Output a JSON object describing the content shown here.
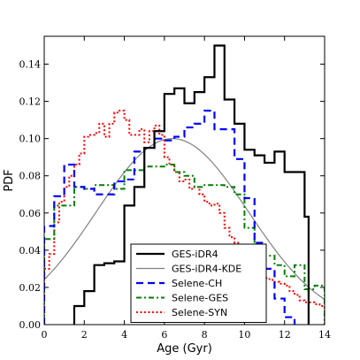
{
  "chart_data": {
    "type": "line",
    "xlabel": "Age (Gyr)",
    "ylabel": "PDF",
    "xlim": [
      0,
      14
    ],
    "ylim": [
      0,
      0.155
    ],
    "x_ticks": [
      0,
      2,
      4,
      6,
      8,
      10,
      12,
      14
    ],
    "y_ticks": [
      0.0,
      0.02,
      0.04,
      0.06,
      0.08,
      0.1,
      0.12,
      0.14
    ],
    "x_tick_labels": [
      "0",
      "2",
      "4",
      "6",
      "8",
      "10",
      "12",
      "14"
    ],
    "y_tick_labels": [
      "0.00",
      "0.02",
      "0.04",
      "0.06",
      "0.08",
      "0.10",
      "0.12",
      "0.14"
    ],
    "legend_position": "bottom-center",
    "grid": false,
    "series": [
      {
        "name": "GES-iDR4",
        "style": "step",
        "color": "#000000",
        "dash": "solid",
        "width": 2.2,
        "edges": [
          1.5,
          2.0,
          2.5,
          3.0,
          3.5,
          4.0,
          4.5,
          5.0,
          5.5,
          6.0,
          6.5,
          7.0,
          7.5,
          8.0,
          8.5,
          9.0,
          9.5,
          10.0,
          10.5,
          11.0,
          11.5,
          12.0,
          12.5,
          13.0,
          13.2
        ],
        "values": [
          0.01,
          0.018,
          0.032,
          0.033,
          0.034,
          0.064,
          0.074,
          0.095,
          0.104,
          0.124,
          0.127,
          0.119,
          0.125,
          0.133,
          0.15,
          0.121,
          0.108,
          0.094,
          0.091,
          0.087,
          0.093,
          0.082,
          0.082,
          0.058
        ]
      },
      {
        "name": "GES-iDR4-KDE",
        "style": "curve",
        "color": "#808080",
        "dash": "solid",
        "width": 1.2,
        "mean": 6.4,
        "sd": 3.8,
        "peak": 0.1
      },
      {
        "name": "Selene-CH",
        "style": "step",
        "color": "#0000ff",
        "dash": "8,5",
        "width": 2.2,
        "edges": [
          0,
          0.5,
          1.0,
          1.5,
          2.0,
          2.5,
          3.0,
          3.5,
          4.0,
          4.5,
          5.0,
          5.5,
          6.0,
          6.5,
          7.0,
          7.5,
          8.0,
          8.5,
          9.0,
          9.5,
          10.0,
          10.5,
          11.0,
          11.5,
          12.0,
          12.5
        ],
        "values": [
          0.053,
          0.069,
          0.086,
          0.074,
          0.073,
          0.07,
          0.07,
          0.077,
          0.078,
          0.093,
          0.095,
          0.1,
          0.099,
          0.101,
          0.106,
          0.108,
          0.115,
          0.105,
          0.105,
          0.089,
          0.068,
          0.044,
          0.03,
          0.014,
          0.004
        ]
      },
      {
        "name": "Selene-GES",
        "style": "step",
        "color": "#008000",
        "dash": "6,3,2,3",
        "width": 2.0,
        "edges": [
          0,
          0.5,
          1.0,
          1.5,
          2.0,
          2.5,
          3.0,
          3.5,
          4.0,
          4.5,
          5.0,
          5.5,
          6.0,
          6.5,
          7.0,
          7.5,
          8.0,
          8.5,
          9.0,
          9.5,
          10.0,
          10.5,
          11.0,
          11.5,
          12.0,
          12.5,
          13.0,
          13.5,
          14.0
        ],
        "values": [
          0.046,
          0.064,
          0.064,
          0.074,
          0.073,
          0.075,
          0.075,
          0.073,
          0.083,
          0.083,
          0.085,
          0.085,
          0.086,
          0.082,
          0.08,
          0.074,
          0.075,
          0.075,
          0.074,
          0.07,
          0.052,
          0.043,
          0.037,
          0.032,
          0.026,
          0.032,
          0.019,
          0.021
        ]
      },
      {
        "name": "Selene-SYN",
        "style": "step",
        "color": "#ff0000",
        "dash": "2,2.5",
        "width": 2.0,
        "edges": [
          0,
          0.25,
          0.5,
          0.75,
          1.0,
          1.25,
          1.5,
          1.75,
          2.0,
          2.25,
          2.5,
          2.75,
          3.0,
          3.25,
          3.5,
          3.75,
          4.0,
          4.25,
          4.5,
          4.75,
          5.0,
          5.25,
          5.5,
          5.75,
          6.0,
          6.25,
          6.5,
          6.75,
          7.0,
          7.25,
          7.5,
          7.75,
          8.0,
          8.25,
          8.5,
          8.75,
          9.0,
          9.25,
          9.5,
          9.75,
          10.0,
          10.25,
          10.5,
          10.75,
          11.0,
          11.25,
          11.5,
          11.75,
          12.0,
          12.25,
          12.5,
          12.75,
          13.0,
          13.25,
          13.5,
          13.75,
          14.0
        ],
        "values": [
          0.03,
          0.038,
          0.055,
          0.066,
          0.074,
          0.08,
          0.086,
          0.092,
          0.101,
          0.102,
          0.103,
          0.108,
          0.101,
          0.108,
          0.114,
          0.115,
          0.11,
          0.102,
          0.102,
          0.105,
          0.098,
          0.104,
          0.107,
          0.102,
          0.09,
          0.086,
          0.082,
          0.077,
          0.078,
          0.073,
          0.074,
          0.07,
          0.066,
          0.064,
          0.065,
          0.06,
          0.052,
          0.047,
          0.044,
          0.04,
          0.038,
          0.036,
          0.032,
          0.028,
          0.025,
          0.024,
          0.023,
          0.022,
          0.021,
          0.018,
          0.016,
          0.013,
          0.012,
          0.012,
          0.011,
          0.01
        ]
      }
    ]
  }
}
